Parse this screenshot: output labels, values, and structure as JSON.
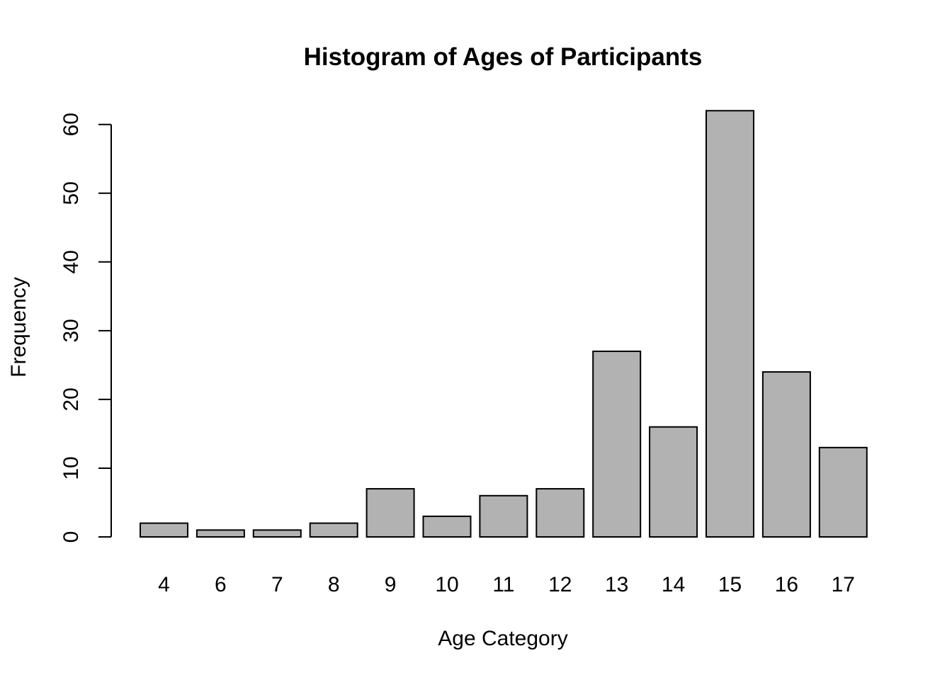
{
  "chart_data": {
    "type": "bar",
    "title": "Histogram of Ages of Participants",
    "xlabel": "Age Category",
    "ylabel": "Frequency",
    "categories": [
      "4",
      "6",
      "7",
      "8",
      "9",
      "10",
      "11",
      "12",
      "13",
      "14",
      "15",
      "16",
      "17"
    ],
    "values": [
      2,
      1,
      1,
      2,
      7,
      3,
      6,
      7,
      27,
      16,
      62,
      24,
      13
    ],
    "ylim": [
      0,
      62
    ],
    "yticks": [
      0,
      10,
      20,
      30,
      40,
      50,
      60
    ],
    "grid": false,
    "bar_color": "#b2b2b2",
    "border_color": "#000000"
  }
}
